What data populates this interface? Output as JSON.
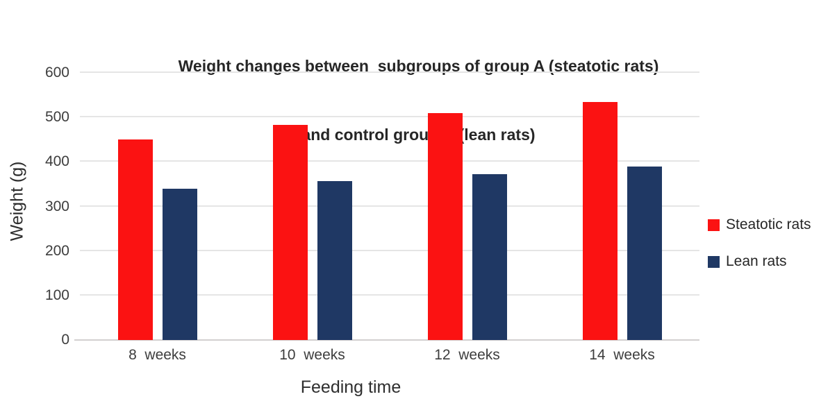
{
  "chart_data": {
    "type": "bar",
    "title_line1": "Weight changes between  subgroups of group A (steatotic rats)",
    "title_line2": "and control group C (lean rats)",
    "xlabel": "Feeding time",
    "ylabel": "Weight (g)",
    "categories": [
      "8  weeks",
      "10  weeks",
      "12  weeks",
      "14  weeks"
    ],
    "series": [
      {
        "name": "Steatotic rats",
        "color": "#fb1212",
        "values": [
          450,
          483,
          510,
          535
        ]
      },
      {
        "name": "Lean rats",
        "color": "#1f3864",
        "values": [
          340,
          357,
          373,
          390
        ]
      }
    ],
    "ylim": [
      0,
      600
    ],
    "yticks": [
      0,
      100,
      200,
      300,
      400,
      500,
      600
    ],
    "grid": true,
    "legend_position": "right"
  },
  "colors": {
    "background": "#ffffff",
    "title_text": "#262626",
    "axis_text": "#3d3d3d",
    "gridline": "#e5e5e5",
    "axis_line": "#d2cfcf",
    "steatotic_red": "#fb1212",
    "lean_navy": "#1f3864"
  }
}
